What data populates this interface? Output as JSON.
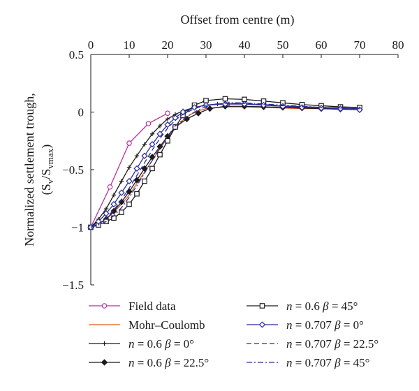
{
  "chart_data": {
    "type": "line",
    "xlabel": "Offset from centre (m)",
    "ylabel_lines": [
      "Normalized settlement trough,",
      "(S_v/S_vmax)"
    ],
    "ylabel_parts": {
      "open": "(S",
      "sub1": "v",
      "mid": "/S",
      "sub2": "vmax",
      "close": ")"
    },
    "xlim": [
      0,
      80
    ],
    "ylim": [
      -1.5,
      0.5
    ],
    "x_ticks": [
      0,
      10,
      20,
      30,
      40,
      50,
      60,
      70,
      80
    ],
    "x_tick_labels": [
      "0",
      "10",
      "20",
      "30",
      "40",
      "50",
      "60",
      "70",
      "80"
    ],
    "y_ticks": [
      0.5,
      0,
      -0.5,
      -1,
      -1.5
    ],
    "y_tick_labels": [
      "0.5",
      "0",
      "−0.5",
      "−1",
      "−1.5"
    ],
    "x_axis_position": "top",
    "grid": false,
    "legend_position": "bottom",
    "series": [
      {
        "name": "Field data",
        "color": "#b5329b",
        "dash": "solid",
        "marker": "open-circle",
        "x": [
          0,
          5,
          10,
          15,
          20
        ],
        "y": [
          -1.0,
          -0.65,
          -0.27,
          -0.1,
          -0.01
        ]
      },
      {
        "name": "Mohr–Coulomb",
        "color": "#e35a1f",
        "dash": "solid",
        "marker": "none",
        "x": [
          0,
          2,
          4,
          6,
          8,
          10,
          12,
          14,
          16,
          18,
          20,
          22,
          24,
          26,
          28,
          30,
          33,
          36,
          40,
          45,
          50,
          55,
          60,
          65,
          70
        ],
        "y": [
          -1.0,
          -0.97,
          -0.93,
          -0.87,
          -0.8,
          -0.72,
          -0.62,
          -0.52,
          -0.42,
          -0.32,
          -0.22,
          -0.14,
          -0.07,
          -0.02,
          0.01,
          0.03,
          0.04,
          0.045,
          0.045,
          0.04,
          0.035,
          0.03,
          0.03,
          0.025,
          0.02
        ]
      },
      {
        "name": "n = 0.6 β = 0°",
        "name_n": "n",
        "name_rest1": " = 0.6 ",
        "name_beta": "β",
        "name_rest2": " = 0°",
        "color": "#1a1a1a",
        "dash": "solid",
        "marker": "plus",
        "x": [
          0,
          2,
          4,
          6,
          8,
          10,
          12,
          14,
          16,
          18,
          20,
          22,
          24,
          27,
          30,
          33,
          36,
          40,
          45,
          50,
          55,
          60,
          65,
          70
        ],
        "y": [
          -1.0,
          -0.93,
          -0.84,
          -0.72,
          -0.6,
          -0.48,
          -0.38,
          -0.28,
          -0.19,
          -0.12,
          -0.06,
          -0.02,
          0.01,
          0.04,
          0.06,
          0.07,
          0.07,
          0.07,
          0.06,
          0.05,
          0.045,
          0.04,
          0.035,
          0.03
        ]
      },
      {
        "name": "n = 0.6 β = 22.5°",
        "name_n": "n",
        "name_rest1": " = 0.6 ",
        "name_beta": "β",
        "name_rest2": " = 22.5°",
        "color": "#1a1a1a",
        "dash": "solid",
        "marker": "filled-diamond",
        "x": [
          0,
          2,
          4,
          6,
          8,
          10,
          12,
          14,
          16,
          18,
          20,
          22,
          25,
          28,
          31,
          35,
          40,
          45,
          50,
          55,
          60,
          65,
          70
        ],
        "y": [
          -1.0,
          -0.97,
          -0.93,
          -0.86,
          -0.78,
          -0.69,
          -0.59,
          -0.49,
          -0.39,
          -0.3,
          -0.21,
          -0.13,
          -0.06,
          -0.01,
          0.03,
          0.05,
          0.05,
          0.045,
          0.04,
          0.035,
          0.03,
          0.025,
          0.02
        ]
      },
      {
        "name": "n = 0.6 β = 45°",
        "name_n": "n",
        "name_rest1": " = 0.6 ",
        "name_beta": "β",
        "name_rest2": " = 45°",
        "color": "#1a1a1a",
        "dash": "solid",
        "marker": "open-square",
        "x": [
          0,
          2,
          4,
          6,
          8,
          10,
          12,
          14,
          16,
          18,
          20,
          22,
          24,
          27,
          30,
          35,
          40,
          45,
          50,
          55,
          60,
          65,
          70
        ],
        "y": [
          -1.0,
          -0.98,
          -0.95,
          -0.92,
          -0.87,
          -0.8,
          -0.71,
          -0.6,
          -0.49,
          -0.37,
          -0.25,
          -0.13,
          -0.03,
          0.06,
          0.1,
          0.115,
          0.11,
          0.095,
          0.08,
          0.065,
          0.055,
          0.045,
          0.04
        ]
      },
      {
        "name": "n = 0.707 β = 0°",
        "name_n": "n",
        "name_rest1": " = 0.707 ",
        "name_beta": "β",
        "name_rest2": " = 0°",
        "color": "#2b2b9e",
        "dash": "solid",
        "marker": "open-diamond",
        "x": [
          0,
          2,
          4,
          6,
          8,
          10,
          12,
          14,
          16,
          18,
          20,
          22,
          24,
          27,
          30,
          35,
          40,
          45,
          50,
          55,
          60,
          65,
          70
        ],
        "y": [
          -1.0,
          -0.95,
          -0.88,
          -0.8,
          -0.7,
          -0.6,
          -0.49,
          -0.38,
          -0.28,
          -0.19,
          -0.11,
          -0.05,
          0.0,
          0.04,
          0.06,
          0.07,
          0.07,
          0.06,
          0.05,
          0.04,
          0.035,
          0.03,
          0.02
        ]
      },
      {
        "name": "n = 0.707 β = 22.5°",
        "name_n": "n",
        "name_rest1": " = 0.707 ",
        "name_beta": "β",
        "name_rest2": " = 22.5°",
        "color": "#2b2b9e",
        "dash": "dashed",
        "marker": "none",
        "x": [
          0,
          2,
          4,
          6,
          8,
          10,
          12,
          14,
          16,
          18,
          20,
          22,
          24,
          27,
          30,
          35,
          40,
          45,
          50,
          55,
          60,
          65,
          70
        ],
        "y": [
          -1.0,
          -0.97,
          -0.92,
          -0.85,
          -0.76,
          -0.66,
          -0.55,
          -0.44,
          -0.33,
          -0.23,
          -0.14,
          -0.07,
          -0.02,
          0.03,
          0.06,
          0.075,
          0.075,
          0.065,
          0.055,
          0.045,
          0.04,
          0.035,
          0.03
        ]
      },
      {
        "name": "n = 0.707 β = 45°",
        "name_n": "n",
        "name_rest1": " = 0.707 ",
        "name_beta": "β",
        "name_rest2": " = 45°",
        "color": "#2b2b9e",
        "dash": "dashdot",
        "marker": "none",
        "x": [
          0,
          2,
          4,
          6,
          8,
          10,
          12,
          14,
          16,
          18,
          20,
          22,
          25,
          28,
          31,
          35,
          40,
          45,
          50,
          55,
          60,
          65,
          70
        ],
        "y": [
          -1.0,
          -0.98,
          -0.95,
          -0.9,
          -0.83,
          -0.74,
          -0.64,
          -0.53,
          -0.42,
          -0.31,
          -0.21,
          -0.12,
          -0.04,
          0.02,
          0.06,
          0.08,
          0.08,
          0.07,
          0.06,
          0.05,
          0.04,
          0.035,
          0.03
        ]
      }
    ]
  }
}
